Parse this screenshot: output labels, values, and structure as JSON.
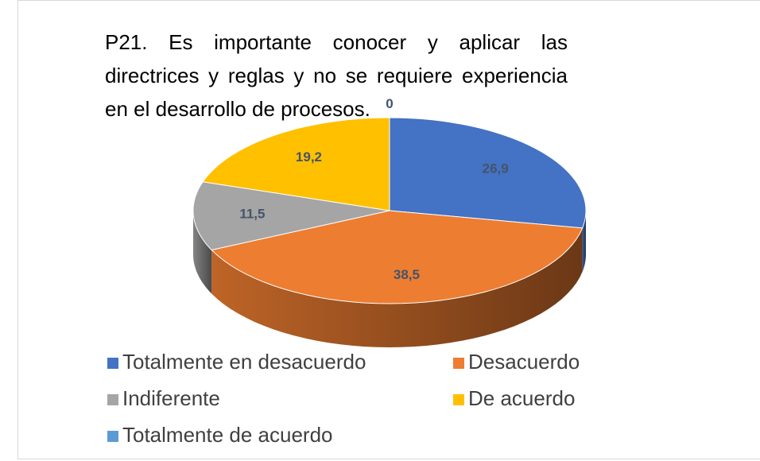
{
  "chart_data": {
    "type": "pie",
    "title": "P21. Es importante conocer y aplicar las directrices y reglas y no se requiere experiencia en el desarrollo de procesos.",
    "categories": [
      "Totalmente en desacuerdo",
      "Desacuerdo",
      "Indiferente",
      "De acuerdo",
      "Totalmente de acuerdo"
    ],
    "values": [
      26.9,
      38.5,
      11.5,
      19.2,
      0
    ],
    "value_labels": [
      "26,9",
      "38,5",
      "11,5",
      "19,2",
      "0"
    ],
    "colors": [
      "#4472c4",
      "#ed7d31",
      "#a5a5a5",
      "#ffc000",
      "#5b9bd5"
    ]
  }
}
